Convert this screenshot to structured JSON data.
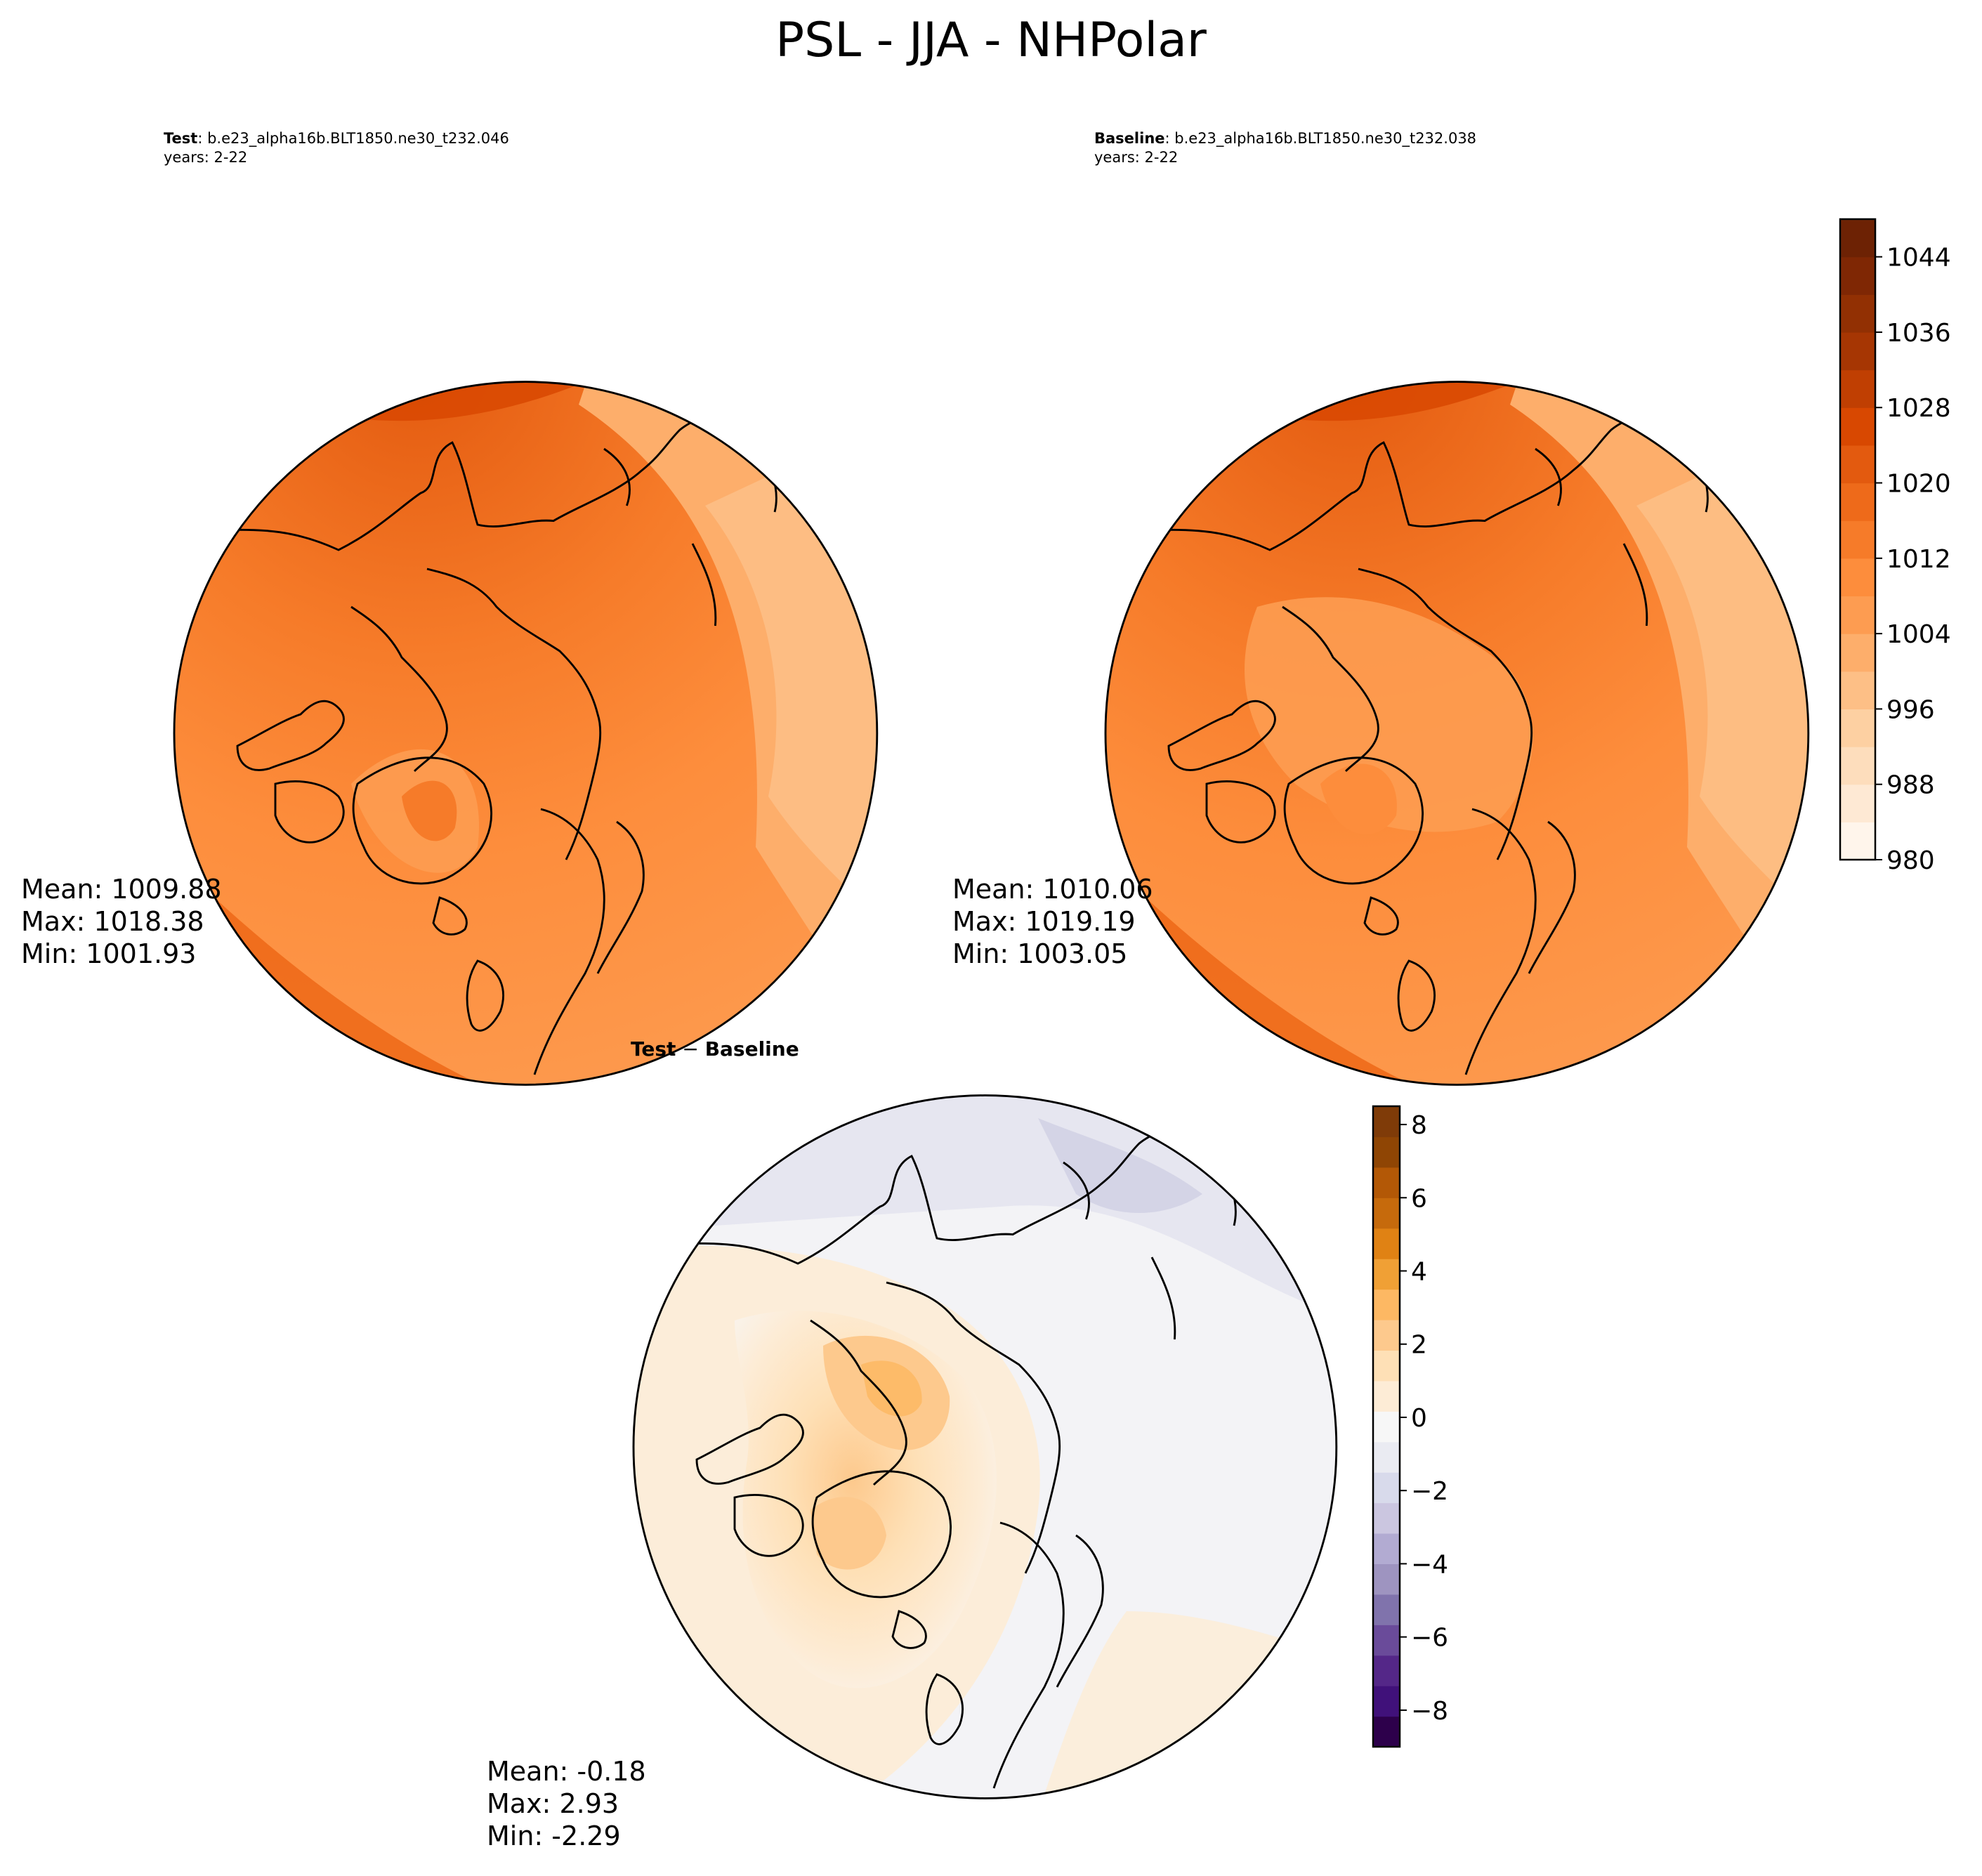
{
  "figure": {
    "title": "PSL - JJA - NHPolar"
  },
  "panels": {
    "test": {
      "label": "Test",
      "case": ": b.e23_alpha16b.BLT1850.ne30_t232.046",
      "years": "years: 2-22",
      "stats": {
        "mean": "Mean: 1009.88",
        "max": "Max: 1018.38",
        "min": "Min: 1001.93"
      }
    },
    "baseline": {
      "label": "Baseline",
      "case": ": b.e23_alpha16b.BLT1850.ne30_t232.038",
      "years": "years: 2-22",
      "stats": {
        "mean": "Mean: 1010.06",
        "max": "Max: 1019.19",
        "min": "Min: 1003.05"
      }
    },
    "diff": {
      "label_a": "Test",
      "label_sep": " − ",
      "label_b": "Baseline",
      "stats": {
        "mean": "Mean: -0.18",
        "max": "Max:  2.93",
        "min": "Min: -2.29"
      }
    }
  },
  "colorbars": {
    "psl": {
      "ticks": [
        "1044",
        "1036",
        "1028",
        "1020",
        "1012",
        "1004",
        "996",
        "988",
        "980"
      ],
      "tick_values": [
        1044,
        1036,
        1028,
        1020,
        1012,
        1004,
        996,
        988,
        980
      ],
      "range": [
        980,
        1048
      ],
      "colors": [
        "#fff5eb",
        "#fee9d4",
        "#fdddbc",
        "#fdd0a2",
        "#fdbf86",
        "#fdae6b",
        "#fd9c51",
        "#fd8d3c",
        "#f67b29",
        "#ee6a1a",
        "#e35a0f",
        "#d84801",
        "#c03f02",
        "#a63603",
        "#923003",
        "#7f2704",
        "#6d2204"
      ]
    },
    "diff": {
      "ticks": [
        "8",
        "6",
        "4",
        "2",
        "0",
        "−2",
        "−4",
        "−6",
        "−8"
      ],
      "tick_values": [
        8,
        6,
        4,
        2,
        0,
        -2,
        -4,
        -6,
        -8
      ],
      "range": [
        -9,
        8.5
      ],
      "colors": [
        "#2d004b",
        "#40117a",
        "#542788",
        "#6a4b9a",
        "#8073ac",
        "#9e94c0",
        "#b2abd2",
        "#cbc6e0",
        "#d8daeb",
        "#eaebf2",
        "#f7f7f7",
        "#fdecd6",
        "#fee0b6",
        "#fdc98d",
        "#fdb863",
        "#f0a035",
        "#e08214",
        "#c66a0c",
        "#b35806",
        "#8f4504",
        "#7f3b08"
      ]
    }
  }
}
